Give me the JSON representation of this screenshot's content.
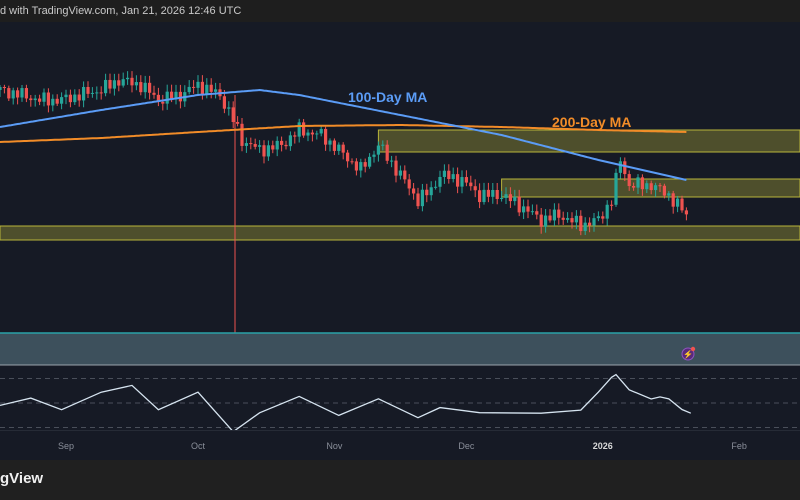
{
  "header": {
    "text": "d with TradingView.com, Jan 21, 2026 12:46 UTC"
  },
  "footer": {
    "logo_text": "gView"
  },
  "colors": {
    "up": "#26a69a",
    "down": "#ef5350",
    "ma100": "#5b9cf6",
    "ma200": "#f28c28",
    "zone": "#b8b43a",
    "bg": "#161a25"
  },
  "chart_data": {
    "type": "candlestick",
    "title": "",
    "xlabel": "",
    "ylabel": "",
    "x_ticks": [
      {
        "label": "Sep",
        "day": 15
      },
      {
        "label": "Oct",
        "day": 45
      },
      {
        "label": "Nov",
        "day": 76
      },
      {
        "label": "Dec",
        "day": 106
      },
      {
        "label": "2026",
        "day": 137,
        "bold": true
      },
      {
        "label": "Feb",
        "day": 168
      }
    ],
    "start_date": "Aug 17, 2025",
    "end_date": "Jan 21, 2026",
    "ylim": [
      230,
      440
    ],
    "close_keypoints": [
      [
        0,
        410
      ],
      [
        5,
        405
      ],
      [
        9,
        400
      ],
      [
        14,
        400
      ],
      [
        18,
        405
      ],
      [
        23,
        410
      ],
      [
        27,
        420
      ],
      [
        32,
        415
      ],
      [
        36,
        400
      ],
      [
        41,
        405
      ],
      [
        45,
        415
      ],
      [
        50,
        405
      ],
      [
        53,
        380
      ],
      [
        55,
        360
      ],
      [
        59,
        350
      ],
      [
        64,
        355
      ],
      [
        68,
        370
      ],
      [
        73,
        365
      ],
      [
        77,
        350
      ],
      [
        82,
        330
      ],
      [
        86,
        355
      ],
      [
        91,
        325
      ],
      [
        95,
        300
      ],
      [
        98,
        310
      ],
      [
        100,
        325
      ],
      [
        105,
        320
      ],
      [
        109,
        305
      ],
      [
        114,
        305
      ],
      [
        118,
        295
      ],
      [
        123,
        280
      ],
      [
        127,
        285
      ],
      [
        132,
        275
      ],
      [
        136,
        280
      ],
      [
        139,
        300
      ],
      [
        141,
        340
      ],
      [
        143,
        315
      ],
      [
        148,
        315
      ],
      [
        150,
        310
      ],
      [
        152,
        305
      ],
      [
        155,
        290
      ],
      [
        156,
        285
      ]
    ],
    "ma100_keypoints": [
      [
        0,
        373
      ],
      [
        23,
        390
      ],
      [
        45,
        405
      ],
      [
        59,
        410
      ],
      [
        68,
        405
      ],
      [
        91,
        385
      ],
      [
        114,
        365
      ],
      [
        136,
        340
      ],
      [
        156,
        320
      ]
    ],
    "ma200_keypoints": [
      [
        0,
        358
      ],
      [
        23,
        362
      ],
      [
        45,
        368
      ],
      [
        68,
        374
      ],
      [
        91,
        375
      ],
      [
        114,
        373
      ],
      [
        136,
        370
      ],
      [
        156,
        368
      ]
    ],
    "zones": [
      {
        "from_day": 86,
        "low": 348,
        "high": 370
      },
      {
        "from_day": 114,
        "low": 303,
        "high": 321
      },
      {
        "from_day": 0,
        "low": 260,
        "high": 274
      }
    ],
    "annotations": [
      {
        "text": "100-Day MA",
        "series": "ma100"
      },
      {
        "text": "200-Day MA",
        "series": "ma200"
      }
    ],
    "rsi": {
      "levels": [
        70,
        50,
        30
      ],
      "keypoints": [
        [
          0,
          48
        ],
        [
          7,
          52
        ],
        [
          14,
          44
        ],
        [
          23,
          57
        ],
        [
          30,
          65
        ],
        [
          36,
          44
        ],
        [
          45,
          57
        ],
        [
          53,
          28
        ],
        [
          59,
          44
        ],
        [
          68,
          57
        ],
        [
          77,
          40
        ],
        [
          86,
          52
        ],
        [
          95,
          36
        ],
        [
          100,
          48
        ],
        [
          109,
          44
        ],
        [
          123,
          40
        ],
        [
          132,
          44
        ],
        [
          136,
          57
        ],
        [
          139,
          69
        ],
        [
          140,
          74
        ],
        [
          143,
          61
        ],
        [
          148,
          52
        ],
        [
          150,
          57
        ],
        [
          152,
          52
        ],
        [
          155,
          43
        ],
        [
          157,
          42
        ]
      ]
    }
  }
}
